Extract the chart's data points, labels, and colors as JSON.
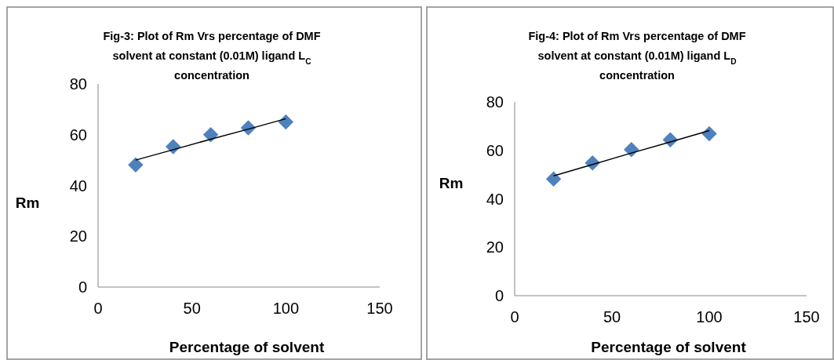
{
  "chart_data": [
    {
      "type": "scatter",
      "title": "Fig-3: Plot of Rm Vrs percentage of DMF solvent at constant (0.01M) ligand  L$_{C}$ concentration",
      "xlabel": "Percentage of solvent",
      "ylabel": "Rm",
      "x": [
        20,
        40,
        60,
        80,
        100
      ],
      "marker": "diamond",
      "xlim": [
        0,
        150
      ],
      "xticks": [
        0,
        50,
        100,
        150
      ],
      "ylim": [
        0,
        80
      ],
      "yticks": [
        0,
        20,
        40,
        60,
        80
      ],
      "grid": false,
      "series": [
        {
          "color": "#4f81bd",
          "values": [
            48.1,
            55.3,
            60.0,
            62.7,
            65.0
          ]
        },
        {
          "type": "line",
          "color": "#000000",
          "values": [
            50.0,
            54.1,
            58.2,
            62.2,
            66.3
          ],
          "marker": "none",
          "line_style": "solid"
        }
      ]
    },
    {
      "type": "scatter",
      "title": "Fig-4: Plot of Rm Vrs percentage of DMF solvent at constant (0.01M) ligand  L$_{D}$ concentration",
      "xlabel": "Percentage of solvent",
      "ylabel": "Rm",
      "x": [
        20,
        40,
        60,
        80,
        100
      ],
      "marker": "diamond",
      "xlim": [
        0,
        150
      ],
      "xticks": [
        0,
        50,
        100,
        150
      ],
      "ylim": [
        0,
        80
      ],
      "yticks": [
        0,
        20,
        40,
        60,
        80
      ],
      "grid": false,
      "series": [
        {
          "color": "#4f81bd",
          "values": [
            48.2,
            54.8,
            60.3,
            64.4,
            66.9
          ]
        },
        {
          "type": "line",
          "color": "#000000",
          "values": [
            49.5,
            54.2,
            58.9,
            63.5,
            68.2
          ],
          "marker": "none",
          "line_style": "solid"
        }
      ]
    }
  ]
}
